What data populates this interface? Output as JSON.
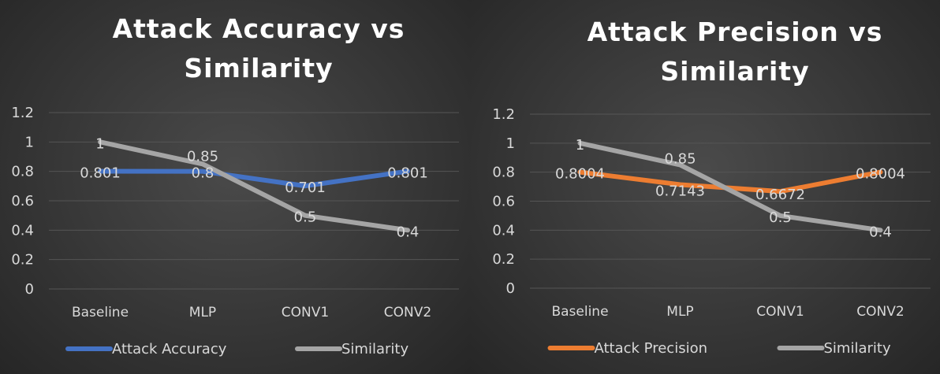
{
  "chart_data": [
    {
      "type": "line",
      "title_lines": [
        "Attack Accuracy vs",
        "Similarity"
      ],
      "categories": [
        "Baseline",
        "MLP",
        "CONV1",
        "CONV2"
      ],
      "ylim": [
        0,
        1.2
      ],
      "yticks": [
        "0",
        "0.2",
        "0.4",
        "0.6",
        "0.8",
        "1",
        "1.2"
      ],
      "grid": true,
      "legend_position": "bottom",
      "series": [
        {
          "name": "Attack Accuracy",
          "color": "#4472c4",
          "values": [
            0.801,
            0.8,
            0.701,
            0.801
          ],
          "labels": [
            "0.801",
            "0.8",
            "0.701",
            "0.801"
          ]
        },
        {
          "name": "Similarity",
          "color": "#a5a5a5",
          "values": [
            1,
            0.85,
            0.5,
            0.4
          ],
          "labels": [
            "1",
            "0.85",
            "0.5",
            "0.4"
          ]
        }
      ]
    },
    {
      "type": "line",
      "title_lines": [
        "Attack Precision vs",
        "Similarity"
      ],
      "categories": [
        "Baseline",
        "MLP",
        "CONV1",
        "CONV2"
      ],
      "ylim": [
        0,
        1.2
      ],
      "yticks": [
        "0",
        "0.2",
        "0.4",
        "0.6",
        "0.8",
        "1",
        "1.2"
      ],
      "grid": true,
      "legend_position": "bottom",
      "series": [
        {
          "name": "Attack Precision",
          "color": "#ed7d31",
          "values": [
            0.8004,
            0.7143,
            0.6672,
            0.8004
          ],
          "labels": [
            "0.8004",
            "0.7143",
            "0.6672",
            "0.8004"
          ]
        },
        {
          "name": "Similarity",
          "color": "#a5a5a5",
          "values": [
            1,
            0.85,
            0.5,
            0.4
          ],
          "labels": [
            "1",
            "0.85",
            "0.5",
            "0.4"
          ]
        }
      ]
    }
  ]
}
